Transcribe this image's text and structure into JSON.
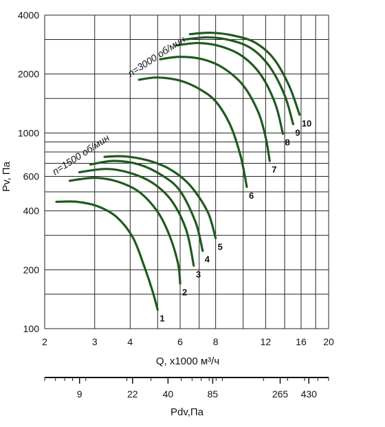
{
  "chart_data": {
    "type": "line",
    "xlabel": "Q, x1000 м³/ч",
    "ylabel": "Pv, Па",
    "x_scale": "log",
    "y_scale": "log",
    "xlim": [
      2,
      20
    ],
    "ylim": [
      100,
      4000
    ],
    "x_ticks": [
      {
        "value": 2,
        "label": "2"
      },
      {
        "value": 3,
        "label": "3"
      },
      {
        "value": 4,
        "label": "4"
      },
      {
        "value": 6,
        "label": "6"
      },
      {
        "value": 8,
        "label": "8"
      },
      {
        "value": 12,
        "label": "12"
      },
      {
        "value": 16,
        "label": "16"
      },
      {
        "value": 20,
        "label": "20"
      }
    ],
    "y_ticks": [
      {
        "value": 100,
        "label": "100"
      },
      {
        "value": 200,
        "label": "200"
      },
      {
        "value": 400,
        "label": "400"
      },
      {
        "value": 600,
        "label": "600"
      },
      {
        "value": 1000,
        "label": "1000"
      },
      {
        "value": 2000,
        "label": "2000"
      },
      {
        "value": 4000,
        "label": "4000"
      }
    ],
    "x_grid": [
      2,
      3,
      4,
      5,
      6,
      7,
      8,
      10,
      12,
      14,
      16,
      18,
      20
    ],
    "y_grid": [
      100,
      150,
      200,
      300,
      400,
      500,
      600,
      700,
      800,
      900,
      1000,
      1500,
      2000,
      3000,
      4000
    ],
    "grid": true,
    "line_color": "#1f5a1f",
    "annotations": [
      {
        "text": "n=1500 об/мин",
        "x": 2.15,
        "y": 620
      },
      {
        "text": "n=3000 об/мин",
        "x": 3.85,
        "y": 2000
      }
    ],
    "series": [
      {
        "name": "1",
        "x": [
          2.2,
          2.6,
          3.1,
          3.6,
          4.1,
          4.5,
          4.8,
          5.0
        ],
        "y": [
          445,
          445,
          420,
          370,
          290,
          205,
          155,
          125
        ]
      },
      {
        "name": "2",
        "x": [
          2.45,
          3.0,
          3.6,
          4.3,
          5.0,
          5.5,
          5.9,
          6.0
        ],
        "y": [
          570,
          590,
          565,
          500,
          395,
          300,
          215,
          170
        ]
      },
      {
        "name": "3",
        "x": [
          2.65,
          3.3,
          4.0,
          4.8,
          5.6,
          6.3,
          6.7
        ],
        "y": [
          630,
          655,
          625,
          555,
          450,
          320,
          210
        ]
      },
      {
        "name": "4",
        "x": [
          2.9,
          3.5,
          4.3,
          5.2,
          6.0,
          6.8,
          7.2
        ],
        "y": [
          690,
          720,
          690,
          605,
          505,
          350,
          250
        ]
      },
      {
        "name": "5",
        "x": [
          3.25,
          3.8,
          4.6,
          5.5,
          6.5,
          7.5,
          8.0
        ],
        "y": [
          755,
          760,
          725,
          655,
          540,
          395,
          290
        ]
      },
      {
        "name": "6",
        "x": [
          4.3,
          5.0,
          6.0,
          7.0,
          8.0,
          9.0,
          9.8,
          10.3
        ],
        "y": [
          1870,
          1920,
          1850,
          1680,
          1450,
          1100,
          760,
          530
        ]
      },
      {
        "name": "7",
        "x": [
          5.1,
          6.0,
          7.2,
          8.5,
          10.0,
          11.3,
          12.0,
          12.4
        ],
        "y": [
          2380,
          2450,
          2380,
          2150,
          1750,
          1280,
          950,
          720
        ]
      },
      {
        "name": "8",
        "x": [
          5.8,
          7.0,
          8.4,
          10.0,
          11.6,
          13.0,
          13.8
        ],
        "y": [
          2800,
          2880,
          2760,
          2450,
          1960,
          1400,
          990
        ]
      },
      {
        "name": "9",
        "x": [
          6.2,
          7.5,
          9.0,
          10.7,
          12.4,
          14.0,
          15.0
        ],
        "y": [
          3000,
          3080,
          2980,
          2700,
          2180,
          1560,
          1110
        ]
      },
      {
        "name": "10",
        "x": [
          6.5,
          7.7,
          9.2,
          11.0,
          12.8,
          14.5,
          15.8
        ],
        "y": [
          3200,
          3250,
          3150,
          2900,
          2400,
          1750,
          1240
        ]
      }
    ],
    "secondary_axis": {
      "label": "Pdv,Па",
      "ticks": [
        {
          "value": 9,
          "label": "9"
        },
        {
          "value": 22,
          "label": "22"
        },
        {
          "value": 40,
          "label": "40"
        },
        {
          "value": 85,
          "label": "85"
        },
        {
          "value": 265,
          "label": "265"
        },
        {
          "value": 430,
          "label": "430"
        }
      ]
    }
  }
}
